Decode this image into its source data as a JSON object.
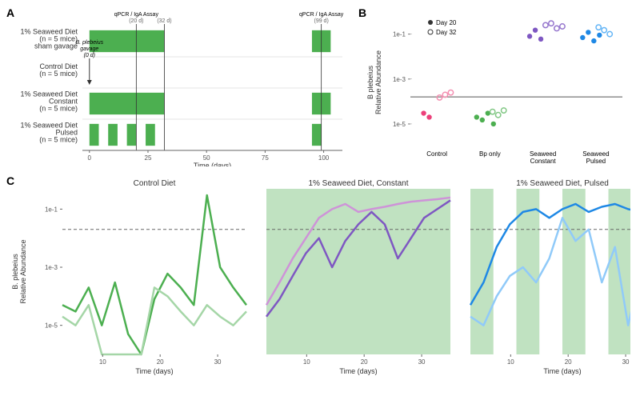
{
  "panelLabels": {
    "A": "A",
    "B": "B",
    "C": "C"
  },
  "colors": {
    "seaweedBar": "#4CAF50",
    "seaweedBarLight": "#A5D6A7",
    "axis": "#666666",
    "grid": "#cccccc",
    "hline": "#888888",
    "bg": "#ffffff",
    "controlDark": "#4CAF50",
    "controlLight": "#A5D6A7",
    "constantDark": "#7E57C2",
    "constantLight": "#CE93D8",
    "pulsedDark": "#1E88E5",
    "pulsedLight": "#90CAF9",
    "pink": "#EC407A",
    "pinkOpen": "#F48FB1"
  },
  "panelA": {
    "groups": [
      {
        "label": "1% Seaweed Diet\n(n = 5 mice)\nsham gavage"
      },
      {
        "label": "Control Diet\n(n = 5 mice)"
      },
      {
        "label": "1% Seaweed Diet\nConstant\n(n = 5 mice)"
      },
      {
        "label": "1% Seaweed Diet\nPulsed\n(n = 5 mice)"
      }
    ],
    "gavageLabel": "B. plebeius\ngavage\n(0 d)",
    "vlines": [
      {
        "x": 20,
        "label": "qPCR / IgA Assay",
        "sub": "(20 d)"
      },
      {
        "x": 32,
        "label": "",
        "sub": "(32 d)"
      },
      {
        "x": 99,
        "label": "qPCR / IgA Assay",
        "sub": "(99 d)"
      }
    ],
    "bars": {
      "row0": [
        [
          0,
          32
        ],
        [
          95,
          103
        ]
      ],
      "row2": [
        [
          0,
          32
        ],
        [
          95,
          103
        ]
      ],
      "row3": [
        [
          0,
          4
        ],
        [
          8,
          12
        ],
        [
          16,
          20
        ],
        [
          24,
          28
        ],
        [
          95,
          99
        ]
      ]
    },
    "xTicks": [
      0,
      25,
      50,
      75,
      100
    ],
    "xLabel": "Time (days)"
  },
  "panelB": {
    "yLabel": "B plebeius\nRelative Abundance",
    "yTicks": [
      "1e-1",
      "1e-3",
      "1e-5"
    ],
    "legend": {
      "filled": "Day 20",
      "open": "Day 32"
    },
    "groups": [
      "Control",
      "Bp only",
      "Seaweed\nConstant",
      "Seaweed\nPulsed"
    ],
    "hlineY": 0.00016,
    "points": {
      "Control": {
        "colorFilled": "#EC407A",
        "colorOpen": "#F48FB1",
        "filled": [
          3e-05,
          2e-05
        ],
        "open": [
          0.00015,
          0.0002,
          0.00025
        ]
      },
      "Bp only": {
        "colorFilled": "#4CAF50",
        "colorOpen": "#81C784",
        "filled": [
          2e-05,
          1.5e-05,
          3e-05,
          1e-05
        ],
        "open": [
          3.5e-05,
          2.5e-05,
          4e-05
        ]
      },
      "Seaweed Constant": {
        "colorFilled": "#7E57C2",
        "colorOpen": "#9575CD",
        "filled": [
          0.08,
          0.15,
          0.06
        ],
        "open": [
          0.25,
          0.3,
          0.18,
          0.22
        ]
      },
      "Seaweed Pulsed": {
        "colorFilled": "#1E88E5",
        "colorOpen": "#64B5F6",
        "filled": [
          0.07,
          0.12,
          0.05,
          0.09
        ],
        "open": [
          0.2,
          0.15,
          0.1
        ]
      }
    }
  },
  "panelC": {
    "subplots": [
      {
        "title": "Control Diet",
        "bg": false,
        "lines": [
          {
            "color": "#4CAF50",
            "y": [
              5e-05,
              3e-05,
              0.0002,
              1e-05,
              0.0003,
              5e-06,
              1e-06,
              8e-05,
              0.0006,
              0.0002,
              5e-05,
              0.3,
              0.001,
              0.0002,
              5e-05
            ]
          },
          {
            "color": "#A5D6A7",
            "y": [
              2e-05,
              1e-05,
              5e-05,
              1e-06,
              1e-06,
              1e-06,
              1e-06,
              0.0002,
              0.0001,
              3e-05,
              1e-05,
              5e-05,
              2e-05,
              1e-05,
              3e-05
            ]
          }
        ]
      },
      {
        "title": "1% Seaweed Diet, Constant",
        "bg": "full",
        "lines": [
          {
            "color": "#7E57C2",
            "y": [
              2e-05,
              8e-05,
              0.0005,
              0.003,
              0.01,
              0.001,
              0.008,
              0.03,
              0.08,
              0.03,
              0.002,
              0.01,
              0.05,
              0.1,
              0.2
            ]
          },
          {
            "color": "#CE93D8",
            "y": [
              5e-05,
              0.0003,
              0.002,
              0.01,
              0.05,
              0.1,
              0.15,
              0.08,
              0.1,
              0.12,
              0.15,
              0.18,
              0.2,
              0.22,
              0.25
            ]
          }
        ]
      },
      {
        "title": "1% Seaweed Diet, Pulsed",
        "bg": "pulses",
        "lines": [
          {
            "color": "#1E88E5",
            "y": [
              5e-05,
              0.0003,
              0.005,
              0.03,
              0.08,
              0.1,
              0.05,
              0.1,
              0.15,
              0.08,
              0.12,
              0.15,
              0.1,
              0.08,
              0.15
            ]
          },
          {
            "color": "#90CAF9",
            "y": [
              2e-05,
              1e-05,
              0.0001,
              0.0005,
              0.001,
              0.0003,
              0.002,
              0.05,
              0.008,
              0.02,
              0.0003,
              0.005,
              1e-05,
              0.001,
              0.04
            ]
          }
        ]
      }
    ],
    "xTicks": [
      10,
      20,
      30
    ],
    "xLabel": "Time (days)",
    "yLabel": "B. plebeius\nRelative Abundance",
    "yTicks": [
      "1e-1",
      "1e-3",
      "1e-5"
    ],
    "hlineY": 0.02,
    "pulseWindows": [
      [
        3,
        7
      ],
      [
        11,
        15
      ],
      [
        19,
        23
      ],
      [
        27,
        31
      ]
    ]
  }
}
